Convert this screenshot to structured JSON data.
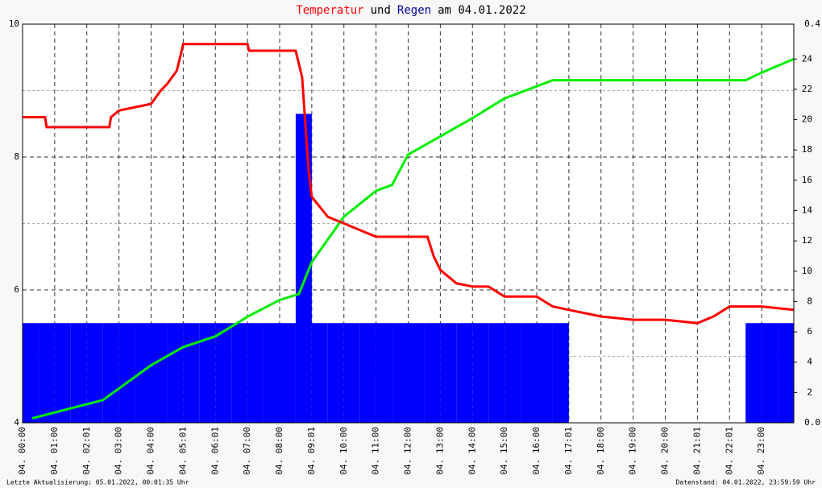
{
  "chart_data": {
    "type": "line",
    "title": [
      {
        "text": "Temperatur",
        "color": "#ff0000"
      },
      {
        "text": "und",
        "color": "#000000"
      },
      {
        "text": "Regen",
        "color": "#0000a0"
      },
      {
        "text": "am 04.01.2022",
        "color": "#000000"
      }
    ],
    "xlim": [
      0,
      24
    ],
    "xticks": [
      {
        "value": 0,
        "label": "04. 00:00"
      },
      {
        "value": 1,
        "label": "04. 01:00"
      },
      {
        "value": 2,
        "label": "04. 02:01"
      },
      {
        "value": 3,
        "label": "04. 03:00"
      },
      {
        "value": 4,
        "label": "04. 04:00"
      },
      {
        "value": 5,
        "label": "04. 05:01"
      },
      {
        "value": 6,
        "label": "04. 06:01"
      },
      {
        "value": 7,
        "label": "04. 07:00"
      },
      {
        "value": 8,
        "label": "04. 08:00"
      },
      {
        "value": 9,
        "label": "04. 09:01"
      },
      {
        "value": 10,
        "label": "04. 10:00"
      },
      {
        "value": 11,
        "label": "04. 11:00"
      },
      {
        "value": 12,
        "label": "04. 12:00"
      },
      {
        "value": 13,
        "label": "04. 13:00"
      },
      {
        "value": 14,
        "label": "04. 14:00"
      },
      {
        "value": 15,
        "label": "04. 15:00"
      },
      {
        "value": 16,
        "label": "04. 16:00"
      },
      {
        "value": 17,
        "label": "04. 17:01"
      },
      {
        "value": 18,
        "label": "04. 18:00"
      },
      {
        "value": 19,
        "label": "04. 19:00"
      },
      {
        "value": 20,
        "label": "04. 20:00"
      },
      {
        "value": 21,
        "label": "04. 21:01"
      },
      {
        "value": 22,
        "label": "04. 22:01"
      },
      {
        "value": 23,
        "label": "04. 23:00"
      }
    ],
    "ylim": [
      4,
      10
    ],
    "yticks": [
      4,
      6,
      8,
      10
    ],
    "yminor": [
      5,
      7,
      9
    ],
    "y2lim": [
      0,
      0.4
    ],
    "y2ticks": [
      {
        "value": 0,
        "label": "0.0"
      },
      0.4
    ],
    "y3lim": [
      0,
      26.3
    ],
    "y3ticks": [
      2,
      4,
      6,
      8,
      10,
      12,
      14,
      16,
      18,
      20,
      22,
      24
    ],
    "grid": true,
    "series": [
      {
        "color": "#0000ff",
        "kind": "bar",
        "axis": "y2",
        "x": [
          0,
          0.5,
          1,
          1.5,
          2,
          2.5,
          3,
          3.5,
          4,
          4.5,
          5,
          5.5,
          6,
          6.5,
          7,
          7.5,
          8,
          8.5,
          9,
          9.5,
          10,
          10.5,
          11,
          11.5,
          12,
          12.5,
          13,
          13.5,
          14,
          14.5,
          15,
          15.5,
          16,
          16.5,
          17,
          17.5,
          18,
          18.5,
          19,
          19.5,
          20,
          20.5,
          21,
          21.5,
          22,
          22.5,
          23,
          23.5
        ],
        "values": [
          0.1,
          0.1,
          0.1,
          0.1,
          0.1,
          0.1,
          0.1,
          0.1,
          0.1,
          0.1,
          0.1,
          0.1,
          0.1,
          0.1,
          0.1,
          0.1,
          0.1,
          0.31,
          0.1,
          0.1,
          0.1,
          0.1,
          0.1,
          0.1,
          0.1,
          0.1,
          0.1,
          0.1,
          0.1,
          0.1,
          0.1,
          0.1,
          0.1,
          0.1,
          0,
          0,
          0,
          0,
          0,
          0,
          0,
          0,
          0,
          0,
          0,
          0.1,
          0.1,
          0.1
        ]
      },
      {
        "color": "#00ee00",
        "kind": "line",
        "axis": "y3",
        "x": [
          0.3,
          2.5,
          4,
          5,
          6,
          7,
          8,
          8.6,
          9,
          10,
          11,
          11.5,
          12,
          13,
          14,
          15,
          16,
          16.5,
          22.5,
          23,
          24
        ],
        "values": [
          0.3,
          1.5,
          3.8,
          5,
          5.7,
          7,
          8.1,
          8.5,
          10.6,
          13.6,
          15.3,
          15.7,
          17.7,
          18.9,
          20.1,
          21.4,
          22.2,
          22.6,
          22.6,
          23.1,
          24
        ]
      },
      {
        "color": "#ff0000",
        "kind": "line",
        "axis": "y",
        "x": [
          0,
          0.7,
          0.75,
          2.7,
          2.75,
          3,
          4,
          4.3,
          4.5,
          4.8,
          5,
          7,
          7.05,
          8.5,
          8.7,
          8.8,
          8.9,
          9,
          9.5,
          10,
          10.5,
          11,
          12,
          12.6,
          12.8,
          13,
          13.5,
          14,
          14.5,
          15,
          16,
          16.5,
          17,
          18,
          19,
          20,
          21,
          21.5,
          22,
          23,
          24
        ],
        "values": [
          8.6,
          8.6,
          8.45,
          8.45,
          8.6,
          8.7,
          8.8,
          9.0,
          9.1,
          9.3,
          9.7,
          9.7,
          9.6,
          9.6,
          9.2,
          8.5,
          7.8,
          7.4,
          7.1,
          7.0,
          6.9,
          6.8,
          6.8,
          6.8,
          6.5,
          6.3,
          6.1,
          6.05,
          6.05,
          5.9,
          5.9,
          5.75,
          5.7,
          5.6,
          5.55,
          5.55,
          5.5,
          5.6,
          5.75,
          5.75,
          5.7
        ]
      }
    ],
    "footer_left": "Letzte Aktualisierung: 05.01.2022, 00:01:35 Uhr",
    "footer_right": "Datenstand: 04.01.2022, 23:59:59 Uhr"
  }
}
